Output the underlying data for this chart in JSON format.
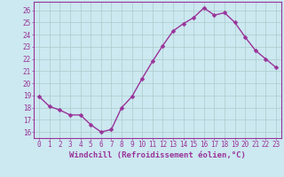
{
  "xlabel": "Windchill (Refroidissement éolien,°C)",
  "x": [
    0,
    1,
    2,
    3,
    4,
    5,
    6,
    7,
    8,
    9,
    10,
    11,
    12,
    13,
    14,
    15,
    16,
    17,
    18,
    19,
    20,
    21,
    22,
    23
  ],
  "y": [
    18.9,
    18.1,
    17.8,
    17.4,
    17.4,
    16.6,
    16.0,
    16.2,
    18.0,
    18.9,
    20.4,
    21.8,
    23.1,
    24.3,
    24.9,
    25.4,
    26.2,
    25.6,
    25.8,
    25.0,
    23.8,
    22.7,
    22.0,
    21.3
  ],
  "line_color": "#993399",
  "marker_color": "#993399",
  "bg_color": "#cce8f0",
  "grid_color": "#aacccc",
  "ylim": [
    15.5,
    26.7
  ],
  "xlim": [
    -0.5,
    23.5
  ],
  "yticks": [
    16,
    17,
    18,
    19,
    20,
    21,
    22,
    23,
    24,
    25,
    26
  ],
  "xtick_labels": [
    "0",
    "1",
    "2",
    "3",
    "4",
    "5",
    "6",
    "7",
    "8",
    "9",
    "10",
    "11",
    "12",
    "13",
    "14",
    "15",
    "16",
    "17",
    "18",
    "19",
    "20",
    "21",
    "22",
    "23"
  ],
  "tick_font_size": 5.5,
  "xlabel_font_size": 6.5,
  "line_width": 1.0,
  "marker_size": 2.5
}
